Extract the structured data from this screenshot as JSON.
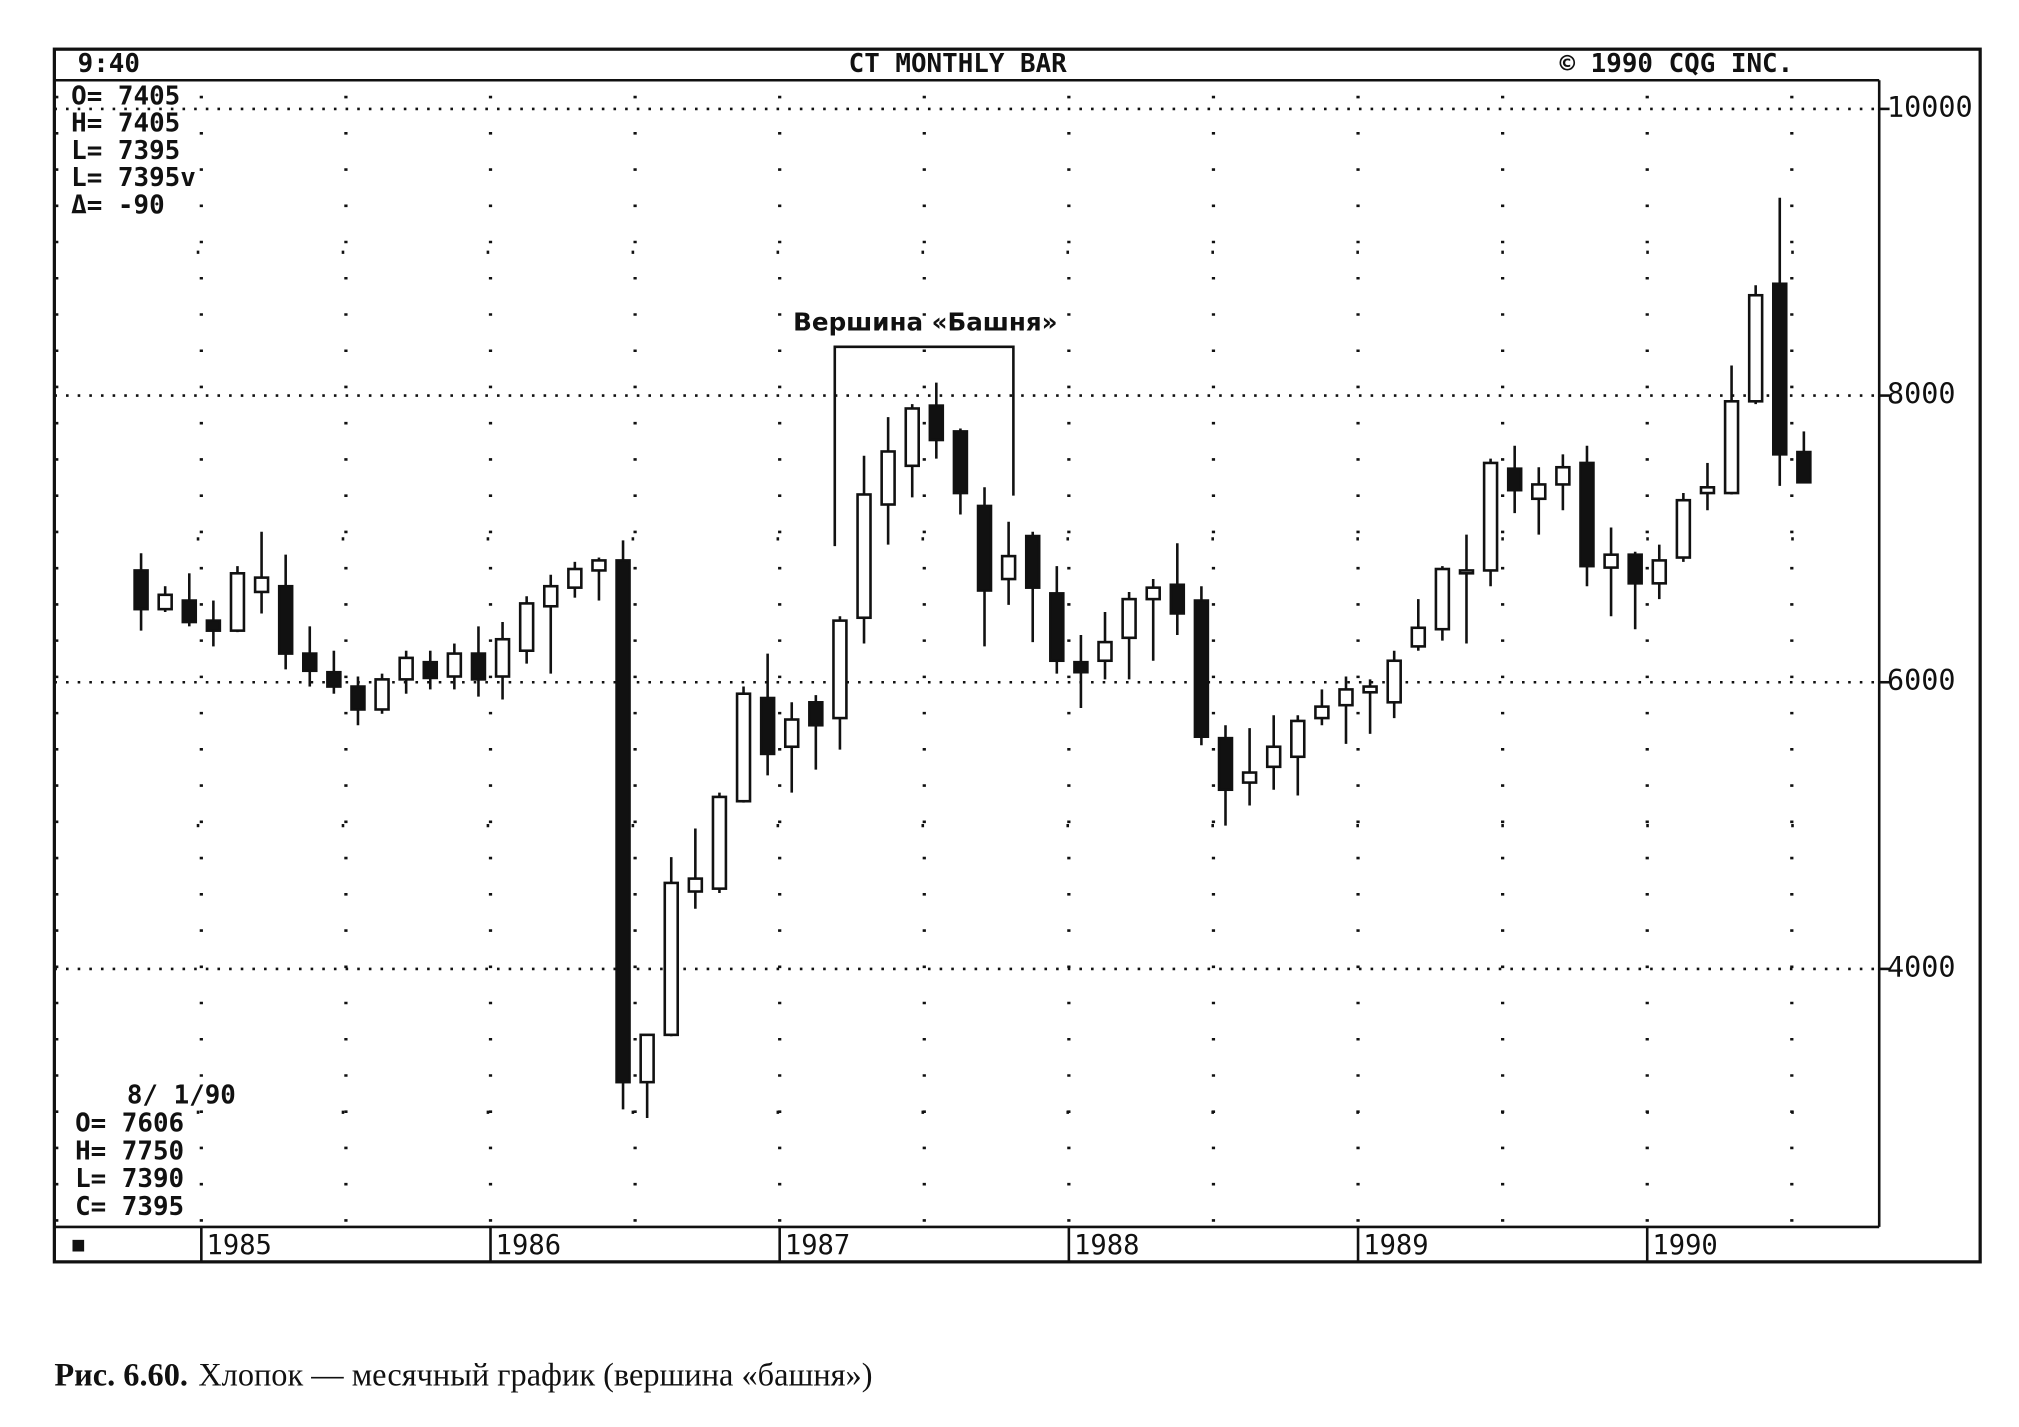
{
  "chart_data": {
    "type": "candlestick",
    "header_left": "9:40",
    "title": "CT MONTHLY BAR",
    "header_right": "© 1990 CQG INC.",
    "info_top": [
      "O= 7405",
      "H= 7405",
      "L= 7395",
      "L= 7395v",
      "Δ=  -90"
    ],
    "info_bottom": [
      "8/ 1/90",
      "O=  7606",
      "H=  7750",
      "L=  7390",
      "C=  7395"
    ],
    "annotation": "Вершина «Башня»",
    "caption_label": "Рис. 6.60.",
    "caption_text": "Хлопок — месячный график (вершина «башня»)",
    "categories": [
      null,
      null,
      null,
      null,
      null,
      null,
      null,
      null,
      null,
      null,
      null,
      null,
      null,
      null,
      null,
      null,
      null,
      null,
      null,
      null,
      null,
      null,
      null,
      null,
      null,
      null,
      null,
      null,
      null,
      null,
      null,
      null,
      null,
      null,
      null,
      null,
      null,
      null,
      null,
      null,
      null,
      null,
      null,
      null,
      null,
      null,
      null,
      null,
      null,
      null,
      null,
      null,
      null,
      null,
      null,
      null,
      null,
      null,
      null,
      null,
      null,
      null,
      null,
      null,
      null,
      null,
      null,
      null,
      null,
      null
    ],
    "open": [
      6780,
      6510,
      6570,
      6430,
      6360,
      6630,
      6670,
      6200,
      6070,
      5970,
      5810,
      6020,
      6140,
      6040,
      6200,
      6040,
      6220,
      6530,
      6660,
      6780,
      6850,
      3210,
      3540,
      4540,
      4560,
      5170,
      5890,
      5550,
      5860,
      5750,
      6450,
      7240,
      7510,
      7930,
      7750,
      7230,
      6720,
      7020,
      6620,
      6140,
      6150,
      6310,
      6580,
      6680,
      6570,
      5610,
      5300,
      5410,
      5480,
      5750,
      5840,
      5930,
      5860,
      6250,
      6370,
      6760,
      6780,
      7490,
      7280,
      7380,
      7530,
      6800,
      6890,
      6690,
      6870,
      7320,
      7320,
      7960,
      8780,
      7606
    ],
    "high": [
      6900,
      6670,
      6760,
      6570,
      6810,
      7050,
      6890,
      6390,
      6220,
      6040,
      6060,
      6220,
      6220,
      6270,
      6390,
      6420,
      6600,
      6750,
      6840,
      6870,
      6990,
      3540,
      4780,
      4980,
      5230,
      5970,
      6200,
      5860,
      5910,
      6460,
      7580,
      7850,
      7940,
      8090,
      7770,
      7360,
      7120,
      7050,
      6810,
      6330,
      6490,
      6630,
      6720,
      6970,
      6670,
      5700,
      5680,
      5770,
      5770,
      5950,
      6040,
      6020,
      6220,
      6580,
      6810,
      7030,
      7560,
      7650,
      7500,
      7590,
      7650,
      7080,
      6910,
      6960,
      7320,
      7530,
      8210,
      8770,
      9380,
      7750
    ],
    "low": [
      6360,
      6490,
      6390,
      6250,
      6350,
      6480,
      6090,
      5970,
      5920,
      5700,
      5780,
      5920,
      5950,
      5950,
      5900,
      5880,
      6130,
      6060,
      6590,
      6570,
      3020,
      2960,
      3530,
      4420,
      4530,
      5160,
      5350,
      5230,
      5390,
      5530,
      6270,
      6960,
      7290,
      7560,
      7170,
      6250,
      6540,
      6280,
      6060,
      5820,
      6020,
      6020,
      6150,
      6330,
      5560,
      5000,
      5140,
      5250,
      5210,
      5700,
      5570,
      5640,
      5750,
      6220,
      6290,
      6270,
      6670,
      7180,
      7030,
      7200,
      6670,
      6460,
      6370,
      6580,
      6840,
      7200,
      7310,
      7940,
      7370,
      7390
    ],
    "close": [
      6510,
      6610,
      6420,
      6360,
      6760,
      6730,
      6200,
      6080,
      5970,
      5810,
      6020,
      6170,
      6030,
      6200,
      6020,
      6300,
      6550,
      6670,
      6790,
      6850,
      3210,
      3540,
      4600,
      4630,
      5200,
      5920,
      5500,
      5740,
      5700,
      6430,
      7310,
      7610,
      7910,
      7690,
      7320,
      6640,
      6880,
      6660,
      6150,
      6070,
      6280,
      6580,
      6660,
      6480,
      5620,
      5250,
      5370,
      5550,
      5730,
      5830,
      5950,
      5970,
      6150,
      6380,
      6790,
      6780,
      7530,
      7340,
      7380,
      7500,
      6810,
      6890,
      6690,
      6850,
      7270,
      7360,
      7960,
      8700,
      7590,
      7395
    ],
    "up_color": "#ffffff",
    "down_color": "#111111",
    "ylim": [
      2200,
      10200
    ],
    "yticks": [
      4000,
      6000,
      8000,
      10000
    ],
    "xticks": [
      {
        "value": 3,
        "label": "1985"
      },
      {
        "value": 15,
        "label": "1986"
      },
      {
        "value": 27,
        "label": "1987"
      },
      {
        "value": 39,
        "label": "1988"
      },
      {
        "value": 51,
        "label": "1989"
      },
      {
        "value": 63,
        "label": "1990"
      }
    ],
    "grid": true
  }
}
